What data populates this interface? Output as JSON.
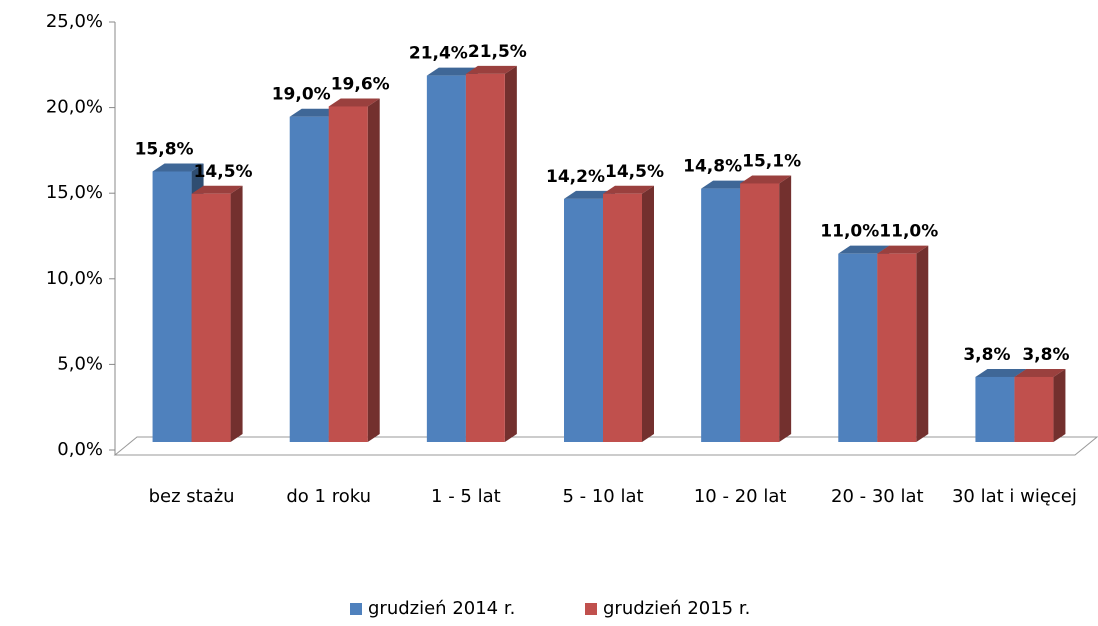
{
  "chart_data": {
    "type": "bar3d",
    "categories": [
      "bez stażu",
      "do 1 roku",
      "1 - 5 lat",
      "5 - 10 lat",
      "10 - 20 lat",
      "20 - 30 lat",
      "30 lat i więcej"
    ],
    "series": [
      {
        "name": "grudzień 2014 r.",
        "color": "#4f81bd",
        "values": [
          15.8,
          19.0,
          21.4,
          14.2,
          14.8,
          11.0,
          3.8
        ],
        "value_labels": [
          "15,8%",
          "19,0%",
          "21,4%",
          "14,2%",
          "14,8%",
          "11,0%",
          "3,8%"
        ]
      },
      {
        "name": "grudzień 2015 r.",
        "color": "#c0504d",
        "values": [
          14.5,
          19.6,
          21.5,
          14.5,
          15.1,
          11.0,
          3.8
        ],
        "value_labels": [
          "14,5%",
          "19,6%",
          "21,5%",
          "14,5%",
          "15,1%",
          "11,0%",
          "3,8%"
        ]
      }
    ],
    "ylim": [
      0,
      25
    ],
    "yticks": [
      {
        "value": 0,
        "label": "0,0%"
      },
      {
        "value": 5,
        "label": "5,0%"
      },
      {
        "value": 10,
        "label": "10,0%"
      },
      {
        "value": 15,
        "label": "15,0%"
      },
      {
        "value": 20,
        "label": "20,0%"
      },
      {
        "value": 25,
        "label": "25,0%"
      }
    ]
  }
}
